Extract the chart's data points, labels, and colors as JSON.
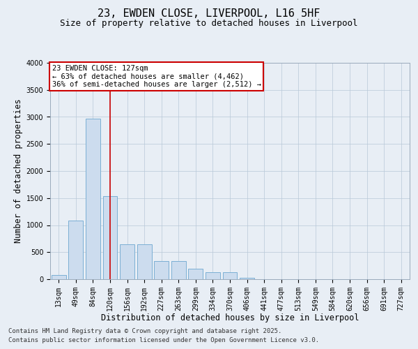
{
  "title_line1": "23, EWDEN CLOSE, LIVERPOOL, L16 5HF",
  "title_line2": "Size of property relative to detached houses in Liverpool",
  "xlabel": "Distribution of detached houses by size in Liverpool",
  "ylabel": "Number of detached properties",
  "categories": [
    "13sqm",
    "49sqm",
    "84sqm",
    "120sqm",
    "156sqm",
    "192sqm",
    "227sqm",
    "263sqm",
    "299sqm",
    "334sqm",
    "370sqm",
    "406sqm",
    "441sqm",
    "477sqm",
    "513sqm",
    "549sqm",
    "584sqm",
    "620sqm",
    "656sqm",
    "691sqm",
    "727sqm"
  ],
  "values": [
    75,
    1090,
    2970,
    1540,
    640,
    640,
    340,
    340,
    200,
    130,
    130,
    20,
    0,
    0,
    0,
    0,
    0,
    0,
    0,
    0,
    0
  ],
  "bar_color": "#ccdcee",
  "bar_edge_color": "#7bafd4",
  "ylim": [
    0,
    4000
  ],
  "yticks": [
    0,
    500,
    1000,
    1500,
    2000,
    2500,
    3000,
    3500,
    4000
  ],
  "vline_color": "#cc0000",
  "annotation_box_text": "23 EWDEN CLOSE: 127sqm\n← 63% of detached houses are smaller (4,462)\n36% of semi-detached houses are larger (2,512) →",
  "footer_line1": "Contains HM Land Registry data © Crown copyright and database right 2025.",
  "footer_line2": "Contains public sector information licensed under the Open Government Licence v3.0.",
  "background_color": "#e8eef5",
  "plot_bg_color": "#e8eef5",
  "grid_color": "#b8c8d8",
  "title_fontsize": 11,
  "subtitle_fontsize": 9,
  "label_fontsize": 8.5,
  "tick_fontsize": 7,
  "footer_fontsize": 6.5,
  "annot_fontsize": 7.5
}
